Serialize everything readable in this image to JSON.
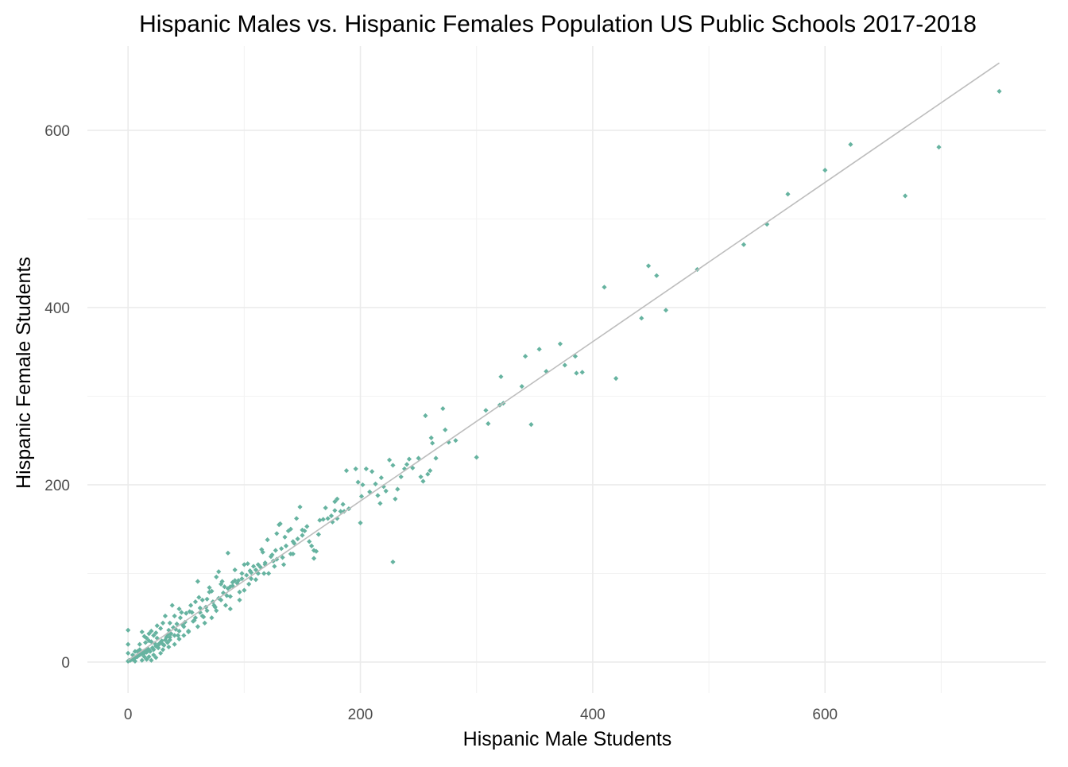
{
  "chart_data": {
    "type": "scatter",
    "title": "Hispanic Males vs. Hispanic Females Population US Public Schools 2017-2018",
    "xlabel": "Hispanic Male Students",
    "ylabel": "Hispanic Female Students",
    "xlim": [
      -35,
      790
    ],
    "ylim": [
      -35,
      695
    ],
    "x_ticks": [
      0,
      200,
      400,
      600
    ],
    "y_ticks": [
      0,
      200,
      400,
      600
    ],
    "x_tick_labels": [
      "0",
      "200",
      "400",
      "600"
    ],
    "y_tick_labels": [
      "0",
      "200",
      "400",
      "600"
    ],
    "grid": true,
    "point_color": "#66b3a0",
    "line_color": "#bdbdbd",
    "trend_line": {
      "x": [
        0,
        750
      ],
      "y": [
        2,
        676
      ]
    },
    "points": [
      [
        750,
        644
      ],
      [
        698,
        581
      ],
      [
        669,
        526
      ],
      [
        622,
        584
      ],
      [
        600,
        555
      ],
      [
        568,
        528
      ],
      [
        550,
        494
      ],
      [
        530,
        471
      ],
      [
        490,
        443
      ],
      [
        463,
        397
      ],
      [
        455,
        436
      ],
      [
        448,
        447
      ],
      [
        442,
        388
      ],
      [
        420,
        320
      ],
      [
        410,
        423
      ],
      [
        391,
        327
      ],
      [
        386,
        326
      ],
      [
        385,
        345
      ],
      [
        376,
        335
      ],
      [
        372,
        359
      ],
      [
        360,
        328
      ],
      [
        354,
        353
      ],
      [
        347,
        268
      ],
      [
        342,
        345
      ],
      [
        339,
        311
      ],
      [
        323,
        292
      ],
      [
        320,
        290
      ],
      [
        321,
        322
      ],
      [
        310,
        269
      ],
      [
        308,
        284
      ],
      [
        300,
        231
      ],
      [
        282,
        250
      ],
      [
        276,
        248
      ],
      [
        273,
        262
      ],
      [
        271,
        286
      ],
      [
        265,
        230
      ],
      [
        262,
        247
      ],
      [
        261,
        253
      ],
      [
        260,
        216
      ],
      [
        258,
        212
      ],
      [
        256,
        278
      ],
      [
        254,
        204
      ],
      [
        252,
        209
      ],
      [
        250,
        230
      ],
      [
        245,
        219
      ],
      [
        242,
        229
      ],
      [
        240,
        223
      ],
      [
        238,
        218
      ],
      [
        235,
        209
      ],
      [
        232,
        195
      ],
      [
        230,
        184
      ],
      [
        228,
        222
      ],
      [
        228,
        113
      ],
      [
        225,
        228
      ],
      [
        222,
        193
      ],
      [
        220,
        198
      ],
      [
        218,
        208
      ],
      [
        217,
        179
      ],
      [
        215,
        188
      ],
      [
        213,
        201
      ],
      [
        210,
        215
      ],
      [
        208,
        192
      ],
      [
        205,
        218
      ],
      [
        202,
        200
      ],
      [
        201,
        187
      ],
      [
        200,
        157
      ],
      [
        198,
        203
      ],
      [
        196,
        218
      ],
      [
        190,
        173
      ],
      [
        188,
        216
      ],
      [
        185,
        178
      ],
      [
        183,
        170
      ],
      [
        180,
        162
      ],
      [
        178,
        181
      ],
      [
        178,
        171
      ],
      [
        175,
        165
      ],
      [
        170,
        174
      ],
      [
        168,
        161
      ],
      [
        165,
        160
      ],
      [
        162,
        125
      ],
      [
        160,
        117
      ],
      [
        158,
        131
      ],
      [
        156,
        136
      ],
      [
        154,
        153
      ],
      [
        152,
        148
      ],
      [
        150,
        149
      ],
      [
        148,
        175
      ],
      [
        145,
        162
      ],
      [
        143,
        134
      ],
      [
        140,
        122
      ],
      [
        138,
        148
      ],
      [
        135,
        141
      ],
      [
        133,
        118
      ],
      [
        131,
        156
      ],
      [
        130,
        155
      ],
      [
        128,
        145
      ],
      [
        127,
        126
      ],
      [
        125,
        114
      ],
      [
        123,
        119
      ],
      [
        121,
        100
      ],
      [
        120,
        138
      ],
      [
        118,
        110
      ],
      [
        117,
        100
      ],
      [
        115,
        127
      ],
      [
        112,
        110
      ],
      [
        110,
        93
      ],
      [
        108,
        108
      ],
      [
        105,
        103
      ],
      [
        103,
        111
      ],
      [
        100,
        81
      ],
      [
        98,
        100
      ],
      [
        96,
        79
      ],
      [
        95,
        92
      ],
      [
        92,
        92
      ],
      [
        90,
        90
      ],
      [
        88,
        85
      ],
      [
        86,
        123
      ],
      [
        85,
        75
      ],
      [
        83,
        85
      ],
      [
        81,
        91
      ],
      [
        80,
        70
      ],
      [
        78,
        102
      ],
      [
        76,
        96
      ],
      [
        75,
        62
      ],
      [
        73,
        68
      ],
      [
        72,
        80
      ],
      [
        70,
        84
      ],
      [
        68,
        71
      ],
      [
        67,
        62
      ],
      [
        65,
        51
      ],
      [
        64,
        52
      ],
      [
        62,
        61
      ],
      [
        61,
        73
      ],
      [
        60,
        91
      ],
      [
        58,
        50
      ],
      [
        57,
        47
      ],
      [
        55,
        56
      ],
      [
        54,
        64
      ],
      [
        53,
        57
      ],
      [
        52,
        34
      ],
      [
        50,
        55
      ],
      [
        49,
        45
      ],
      [
        48,
        40
      ],
      [
        47,
        42
      ],
      [
        45,
        50
      ],
      [
        44,
        35
      ],
      [
        43,
        30
      ],
      [
        42,
        43
      ],
      [
        41,
        37
      ],
      [
        40,
        30
      ],
      [
        39,
        39
      ],
      [
        38,
        64
      ],
      [
        37,
        32
      ],
      [
        36,
        25
      ],
      [
        35,
        36
      ],
      [
        34,
        31
      ],
      [
        33,
        28
      ],
      [
        32,
        25
      ],
      [
        31,
        19
      ],
      [
        30,
        20
      ],
      [
        29,
        24
      ],
      [
        28,
        22
      ],
      [
        27,
        21
      ],
      [
        26,
        19
      ],
      [
        25,
        27
      ],
      [
        24,
        18
      ],
      [
        23,
        21
      ],
      [
        22,
        14
      ],
      [
        21,
        16
      ],
      [
        20,
        23
      ],
      [
        19,
        12
      ],
      [
        18,
        14
      ],
      [
        17,
        15
      ],
      [
        16,
        11
      ],
      [
        15,
        13
      ],
      [
        14,
        10
      ],
      [
        13,
        12
      ],
      [
        12,
        9
      ],
      [
        11,
        10
      ],
      [
        10,
        8
      ],
      [
        9,
        8
      ],
      [
        8,
        6
      ],
      [
        7,
        6
      ],
      [
        6,
        5
      ],
      [
        5,
        4
      ],
      [
        4,
        3
      ],
      [
        3,
        3
      ],
      [
        2,
        2
      ],
      [
        1,
        2
      ],
      [
        0,
        1
      ],
      [
        0,
        36
      ],
      [
        0,
        20
      ],
      [
        0,
        10
      ],
      [
        12,
        34
      ],
      [
        14,
        29
      ],
      [
        16,
        27
      ],
      [
        18,
        32
      ],
      [
        20,
        35
      ],
      [
        25,
        41
      ],
      [
        28,
        38
      ],
      [
        30,
        44
      ],
      [
        22,
        30
      ],
      [
        15,
        22
      ],
      [
        10,
        14
      ],
      [
        8,
        12
      ],
      [
        26,
        16
      ],
      [
        30,
        14
      ],
      [
        35,
        17
      ],
      [
        40,
        20
      ],
      [
        22,
        8
      ],
      [
        28,
        10
      ],
      [
        18,
        6
      ],
      [
        20,
        2
      ],
      [
        12,
        2
      ],
      [
        6,
        1
      ],
      [
        34,
        22
      ],
      [
        44,
        26
      ],
      [
        52,
        35
      ],
      [
        60,
        40
      ],
      [
        66,
        44
      ],
      [
        72,
        50
      ],
      [
        58,
        68
      ],
      [
        64,
        70
      ],
      [
        70,
        79
      ],
      [
        44,
        60
      ],
      [
        46,
        56
      ],
      [
        36,
        44
      ],
      [
        32,
        52
      ],
      [
        40,
        52
      ],
      [
        24,
        33
      ],
      [
        18,
        24
      ],
      [
        10,
        20
      ],
      [
        6,
        12
      ],
      [
        4,
        8
      ],
      [
        14,
        6
      ],
      [
        16,
        3
      ],
      [
        24,
        5
      ],
      [
        36,
        28
      ],
      [
        48,
        30
      ],
      [
        56,
        46
      ],
      [
        62,
        56
      ],
      [
        68,
        58
      ],
      [
        74,
        64
      ],
      [
        78,
        72
      ],
      [
        82,
        78
      ],
      [
        86,
        83
      ],
      [
        90,
        86
      ],
      [
        94,
        89
      ],
      [
        98,
        94
      ],
      [
        102,
        98
      ],
      [
        106,
        101
      ],
      [
        110,
        104
      ],
      [
        114,
        107
      ],
      [
        118,
        112
      ],
      [
        124,
        121
      ],
      [
        128,
        116
      ],
      [
        132,
        128
      ],
      [
        136,
        131
      ],
      [
        142,
        136
      ],
      [
        146,
        139
      ],
      [
        150,
        143
      ],
      [
        92,
        104
      ],
      [
        104,
        88
      ],
      [
        96,
        70
      ],
      [
        116,
        124
      ],
      [
        134,
        110
      ],
      [
        142,
        122
      ],
      [
        88,
        74
      ],
      [
        80,
        88
      ],
      [
        76,
        58
      ],
      [
        84,
        64
      ],
      [
        88,
        60
      ],
      [
        100,
        110
      ],
      [
        106,
        94
      ],
      [
        112,
        100
      ],
      [
        126,
        108
      ],
      [
        140,
        150
      ],
      [
        160,
        126
      ],
      [
        164,
        144
      ],
      [
        172,
        162
      ],
      [
        176,
        158
      ],
      [
        180,
        184
      ],
      [
        186,
        170
      ]
    ]
  }
}
